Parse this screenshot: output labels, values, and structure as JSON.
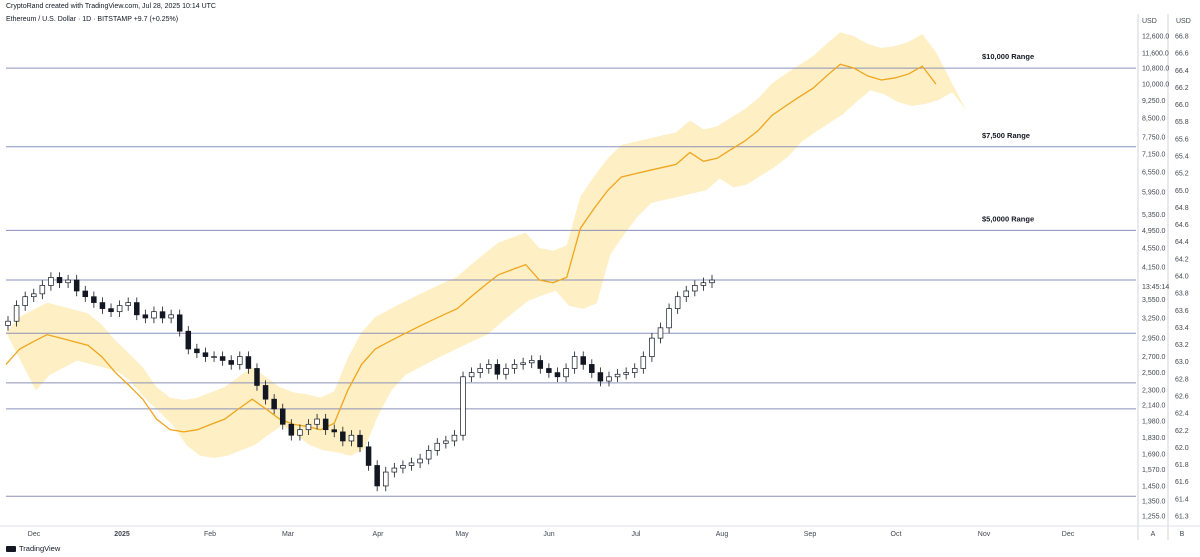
{
  "header": {
    "created_line": "CryptoRand created with TradingView.com, Jul 28, 2025 10:14 UTC",
    "symbol_line": "Ethereum / U.S. Dollar · 1D · BITSTAMP  +9.7 (+0.25%)"
  },
  "footer": {
    "brand": "TradingView"
  },
  "chart_data": {
    "type": "candlestick",
    "title": "",
    "colors": {
      "candle": "#131722",
      "ma_line": "#f0a51e",
      "cloud": "#fde9b0",
      "level_line": "#8a91b8"
    },
    "price_axis": {
      "label": "USD",
      "ticks": [
        12600,
        11600,
        10800,
        10000,
        9250,
        8500,
        7750,
        7150,
        6550,
        5950,
        5350,
        4950,
        4550,
        4150,
        3550,
        3250,
        2950,
        2700,
        2500,
        2300,
        2140,
        1980,
        1830,
        1690,
        1570,
        1450,
        1350,
        1255
      ],
      "tick_labels": [
        "12,600.0",
        "11,600.0",
        "10,800.0",
        "10,000.0",
        "9,250.0",
        "8,500.0",
        "7,750.0",
        "7,150.0",
        "6,550.0",
        "5,950.0",
        "5,350.0",
        "4,950.0",
        "4,550.0",
        "4,150.0",
        "3,550.0",
        "3,250.0",
        "2,950.0",
        "2,700.0",
        "2,500.0",
        "2,300.0",
        "2,140.0",
        "1,980.0",
        "1,830.0",
        "1,690.0",
        "1,570.0",
        "1,450.0",
        "1,350.0",
        "1,255.0"
      ],
      "countdown_label": "13:45:14",
      "scale": "log"
    },
    "second_axis": {
      "label": "USD",
      "ticks": [
        "66.8",
        "66.6",
        "66.4",
        "66.2",
        "66.0",
        "65.8",
        "65.6",
        "65.4",
        "65.2",
        "65.0",
        "64.8",
        "64.6",
        "64.4",
        "64.2",
        "64.0",
        "63.8",
        "63.6",
        "63.4",
        "63.2",
        "63.0",
        "62.8",
        "62.6",
        "62.4",
        "62.2",
        "62.0",
        "61.8",
        "61.6",
        "61.4",
        "61.3"
      ]
    },
    "x_axis": {
      "labels": [
        "Dec",
        "2025",
        "Feb",
        "Mar",
        "Apr",
        "May",
        "Jun",
        "Jul",
        "Aug",
        "Sep",
        "Oct",
        "Nov",
        "Dec"
      ],
      "bold": [
        "2025"
      ],
      "corner_labels": [
        "A",
        "B"
      ]
    },
    "range_labels": [
      {
        "text": "$10,000 Range",
        "price": 10800
      },
      {
        "text": "$7,500 Range",
        "price": 7400
      },
      {
        "text": "$5,0000 Range",
        "price": 4950
      }
    ],
    "horizontal_levels": [
      10800,
      7400,
      4950,
      3900,
      3020,
      2380,
      2100,
      1380
    ],
    "candles_close": [
      3200,
      3450,
      3600,
      3650,
      3800,
      3950,
      3850,
      3900,
      3700,
      3600,
      3500,
      3400,
      3350,
      3450,
      3500,
      3300,
      3250,
      3350,
      3250,
      3300,
      3050,
      2800,
      2750,
      2700,
      2700,
      2650,
      2600,
      2700,
      2550,
      2350,
      2200,
      2100,
      1950,
      1850,
      1900,
      1950,
      2000,
      1900,
      1880,
      1800,
      1850,
      1750,
      1600,
      1450,
      1550,
      1580,
      1600,
      1620,
      1650,
      1720,
      1780,
      1800,
      1850,
      2450,
      2500,
      2550,
      2600,
      2480,
      2550,
      2600,
      2620,
      2650,
      2550,
      2500,
      2450,
      2550,
      2700,
      2600,
      2500,
      2400,
      2450,
      2480,
      2500,
      2550,
      2700,
      2950,
      3100,
      3400,
      3600,
      3700,
      3800,
      3850,
      3900
    ],
    "ma_line": [
      2600,
      2800,
      2900,
      3000,
      2950,
      2900,
      2850,
      2700,
      2500,
      2350,
      2200,
      2000,
      1900,
      1880,
      1900,
      1950,
      2000,
      2100,
      2200,
      2100,
      2000,
      1950,
      1930,
      1900,
      1960,
      2300,
      2600,
      2800,
      2900,
      3000,
      3100,
      3200,
      3300,
      3400,
      3600,
      3800,
      4000,
      4100,
      4200,
      3900,
      3850,
      3950,
      5000,
      5500,
      6000,
      6400,
      6500,
      6600,
      6700,
      6800,
      7200,
      6900,
      7000,
      7300,
      7600,
      8000,
      8600,
      9000,
      9400,
      9800,
      10400,
      11000,
      10800,
      10400,
      10200,
      10300,
      10500,
      10900,
      10000
    ]
  }
}
